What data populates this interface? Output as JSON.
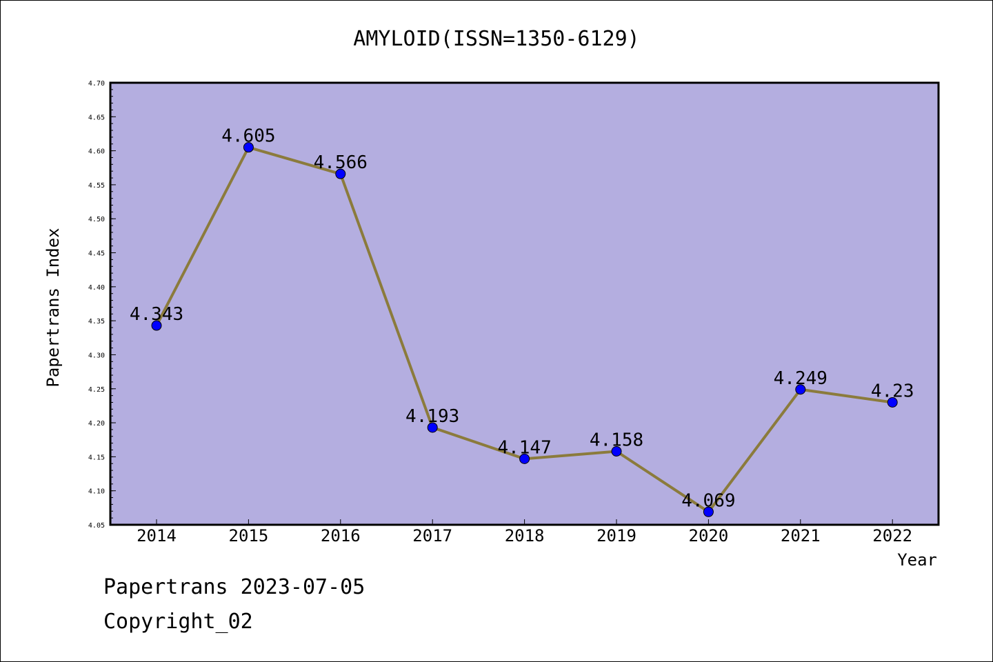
{
  "chart_data": {
    "type": "line",
    "title": "AMYLOID(ISSN=1350-6129)",
    "xlabel": "Year",
    "ylabel": "Papertrans Index",
    "categories": [
      "2014",
      "2015",
      "2016",
      "2017",
      "2018",
      "2019",
      "2020",
      "2021",
      "2022"
    ],
    "series": [
      {
        "values": [
          4.343,
          4.605,
          4.566,
          4.193,
          4.147,
          4.158,
          4.069,
          4.249,
          4.23
        ],
        "labels": [
          "4.343",
          "4.605",
          "4.566",
          "4.193",
          "4.147",
          "4.158",
          "4.069",
          "4.249",
          "4.23"
        ],
        "line_color": "#8b7b3c",
        "marker_color": "#0000ff"
      }
    ],
    "ylim": [
      4.05,
      4.7
    ],
    "yticks": [
      "4.05",
      "4.10",
      "4.15",
      "4.20",
      "4.25",
      "4.30",
      "4.35",
      "4.40",
      "4.45",
      "4.50",
      "4.55",
      "4.60",
      "4.65",
      "4.70"
    ],
    "plot_background": "#b4aee0",
    "grid": false,
    "legend": "none"
  },
  "footer": {
    "line1": "Papertrans 2023-07-05",
    "line2": "Copyright_02"
  }
}
